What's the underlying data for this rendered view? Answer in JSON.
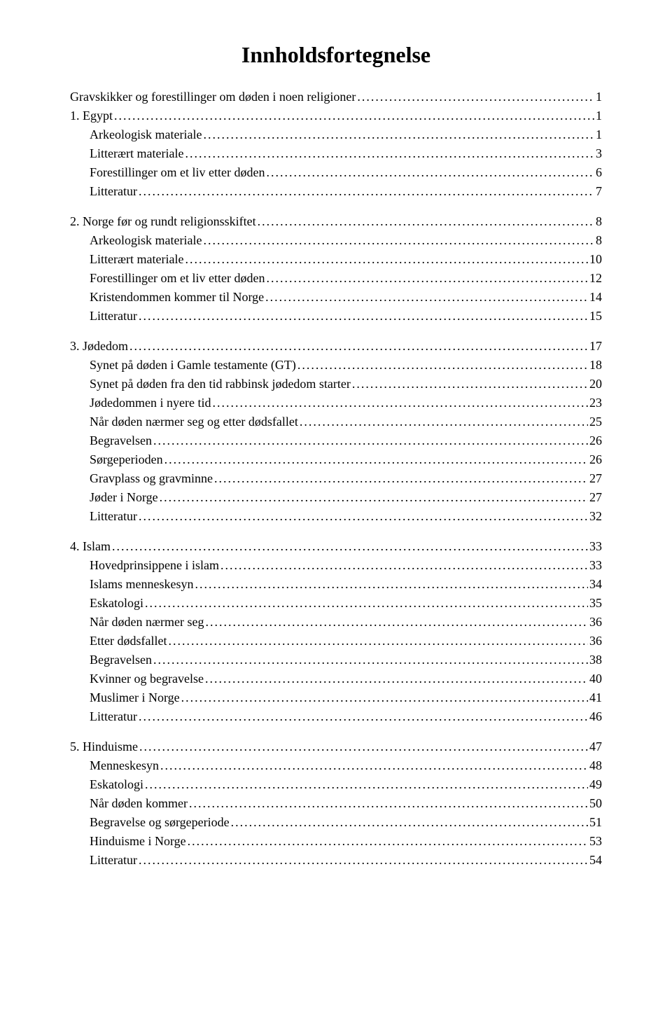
{
  "title": "Innholdsfortegnelse",
  "toc": [
    {
      "label": "Gravskikker og forestillinger om døden i noen religioner",
      "page": "1",
      "indent": 0,
      "gapBefore": false
    },
    {
      "label": "1. Egypt",
      "page": "1",
      "indent": 0,
      "gapBefore": false
    },
    {
      "label": "Arkeologisk materiale",
      "page": "1",
      "indent": 1,
      "gapBefore": false
    },
    {
      "label": "Litterært materiale",
      "page": "3",
      "indent": 1,
      "gapBefore": false
    },
    {
      "label": "Forestillinger om et liv etter døden",
      "page": "6",
      "indent": 1,
      "gapBefore": false
    },
    {
      "label": "Litteratur",
      "page": "7",
      "indent": 1,
      "gapBefore": false
    },
    {
      "label": "2. Norge før og rundt religionsskiftet",
      "page": "8",
      "indent": 0,
      "gapBefore": true
    },
    {
      "label": "Arkeologisk materiale",
      "page": "8",
      "indent": 1,
      "gapBefore": false
    },
    {
      "label": "Litterært materiale",
      "page": "10",
      "indent": 1,
      "gapBefore": false
    },
    {
      "label": "Forestillinger om et liv etter døden",
      "page": "12",
      "indent": 1,
      "gapBefore": false
    },
    {
      "label": "Kristendommen kommer til Norge",
      "page": "14",
      "indent": 1,
      "gapBefore": false
    },
    {
      "label": "Litteratur",
      "page": "15",
      "indent": 1,
      "gapBefore": false
    },
    {
      "label": "3. Jødedom",
      "page": "17",
      "indent": 0,
      "gapBefore": true
    },
    {
      "label": "Synet på døden i Gamle testamente (GT)",
      "page": "18",
      "indent": 1,
      "gapBefore": false
    },
    {
      "label": "Synet på døden fra den tid rabbinsk jødedom starter",
      "page": "20",
      "indent": 1,
      "gapBefore": false
    },
    {
      "label": "Jødedommen i nyere tid",
      "page": "23",
      "indent": 1,
      "gapBefore": false
    },
    {
      "label": "Når døden nærmer seg og etter dødsfallet",
      "page": "25",
      "indent": 1,
      "gapBefore": false
    },
    {
      "label": "Begravelsen",
      "page": "26",
      "indent": 1,
      "gapBefore": false
    },
    {
      "label": "Sørgeperioden",
      "page": "26",
      "indent": 1,
      "gapBefore": false
    },
    {
      "label": "Gravplass og gravminne",
      "page": "27",
      "indent": 1,
      "gapBefore": false
    },
    {
      "label": "Jøder i Norge",
      "page": "27",
      "indent": 1,
      "gapBefore": false
    },
    {
      "label": "Litteratur",
      "page": "32",
      "indent": 1,
      "gapBefore": false
    },
    {
      "label": "4. Islam",
      "page": "33",
      "indent": 0,
      "gapBefore": true
    },
    {
      "label": "Hovedprinsippene i islam",
      "page": "33",
      "indent": 1,
      "gapBefore": false
    },
    {
      "label": "Islams menneskesyn",
      "page": "34",
      "indent": 1,
      "gapBefore": false
    },
    {
      "label": "Eskatologi",
      "page": "35",
      "indent": 1,
      "gapBefore": false
    },
    {
      "label": "Når døden nærmer seg",
      "page": "36",
      "indent": 1,
      "gapBefore": false
    },
    {
      "label": "Etter dødsfallet",
      "page": "36",
      "indent": 1,
      "gapBefore": false
    },
    {
      "label": "Begravelsen",
      "page": "38",
      "indent": 1,
      "gapBefore": false
    },
    {
      "label": "Kvinner og begravelse",
      "page": "40",
      "indent": 1,
      "gapBefore": false
    },
    {
      "label": "Muslimer i Norge",
      "page": "41",
      "indent": 1,
      "gapBefore": false
    },
    {
      "label": "Litteratur",
      "page": "46",
      "indent": 1,
      "gapBefore": false
    },
    {
      "label": "5. Hinduisme",
      "page": "47",
      "indent": 0,
      "gapBefore": true
    },
    {
      "label": "Menneskesyn",
      "page": "48",
      "indent": 1,
      "gapBefore": false
    },
    {
      "label": "Eskatologi",
      "page": "49",
      "indent": 1,
      "gapBefore": false
    },
    {
      "label": "Når døden kommer",
      "page": "50",
      "indent": 1,
      "gapBefore": false
    },
    {
      "label": "Begravelse og sørgeperiode",
      "page": "51",
      "indent": 1,
      "gapBefore": false
    },
    {
      "label": "Hinduisme i Norge",
      "page": "53",
      "indent": 1,
      "gapBefore": false
    },
    {
      "label": "Litteratur",
      "page": "54",
      "indent": 1,
      "gapBefore": false
    }
  ]
}
